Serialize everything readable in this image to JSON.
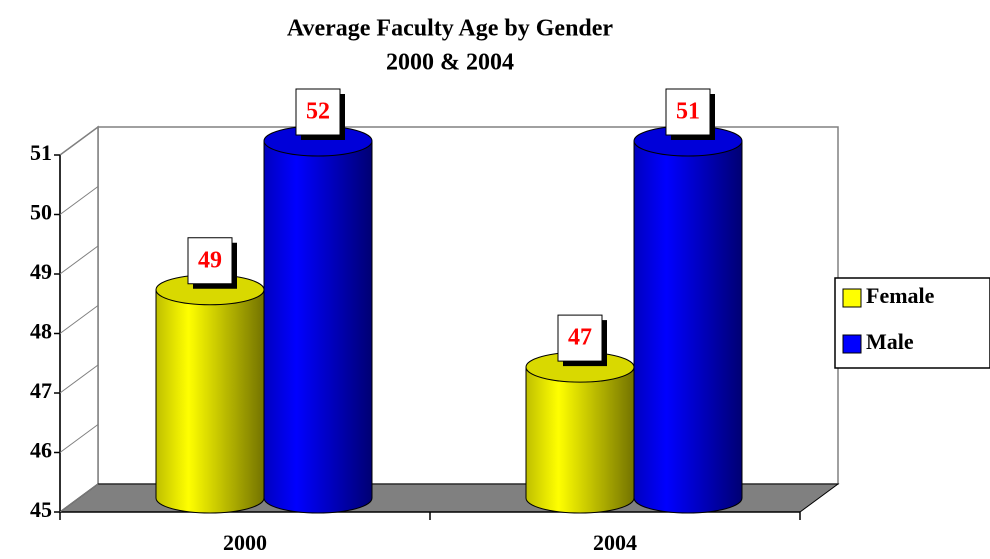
{
  "chart_data": {
    "type": "bar3d-cylinder",
    "title": "Average Faculty Age by Gender",
    "subtitle": "2000 & 2004",
    "categories": [
      "2000",
      "2004"
    ],
    "series": [
      {
        "name": "Female",
        "color": "#ffff00",
        "values": [
          48.5,
          47.2
        ],
        "value_labels": [
          "49",
          "47"
        ]
      },
      {
        "name": "Male",
        "color": "#0000ff",
        "values": [
          51.5,
          51.2
        ],
        "value_labels": [
          "52",
          "51"
        ]
      }
    ],
    "ylim": [
      45,
      51
    ],
    "yticks": [
      45,
      46,
      47,
      48,
      49,
      50,
      51
    ],
    "legend": "right",
    "label_color": "#ff0000"
  }
}
